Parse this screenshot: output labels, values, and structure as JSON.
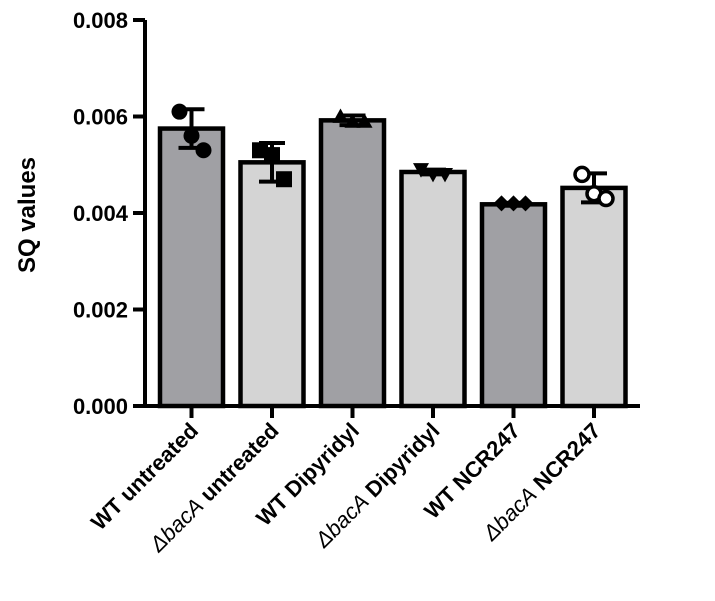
{
  "chart_data": {
    "type": "bar",
    "ylabel": "SQ values",
    "ylim": [
      0,
      0.008
    ],
    "yticks": [
      "0.000",
      "0.002",
      "0.004",
      "0.006",
      "0.008"
    ],
    "grid": false,
    "categories": [
      {
        "prefix": "",
        "italic": "",
        "rest": "WT untreated"
      },
      {
        "prefix": "Δ",
        "italic": "bacA",
        "rest": " untreated"
      },
      {
        "prefix": "",
        "italic": "",
        "rest": "WT Dipyridyl"
      },
      {
        "prefix": "Δ",
        "italic": "bacA",
        "rest": " Dipyridyl"
      },
      {
        "prefix": "",
        "italic": "",
        "rest": "WT NCR247"
      },
      {
        "prefix": "Δ",
        "italic": "bacA",
        "rest": " NCR247"
      }
    ],
    "values": [
      0.00575,
      0.00505,
      0.00592,
      0.00485,
      0.00418,
      0.00452
    ],
    "error": [
      0.0004,
      0.0004,
      0.0001,
      5e-05,
      3e-05,
      0.0003
    ],
    "points": [
      [
        0.0061,
        0.0056,
        0.0053
      ],
      [
        0.0053,
        0.0052,
        0.0047
      ],
      [
        0.006,
        0.0059,
        0.0059
      ],
      [
        0.0049,
        0.0048,
        0.0048
      ],
      [
        0.0042,
        0.0042,
        0.0042
      ],
      [
        0.0048,
        0.0044,
        0.0043
      ]
    ],
    "markers": [
      "circle",
      "square",
      "triangle-up",
      "triangle-down",
      "diamond",
      "circle-open"
    ],
    "colors": [
      "#a0a0a4",
      "#d4d4d4",
      "#a0a0a4",
      "#d4d4d4",
      "#a0a0a4",
      "#d4d4d4"
    ]
  }
}
